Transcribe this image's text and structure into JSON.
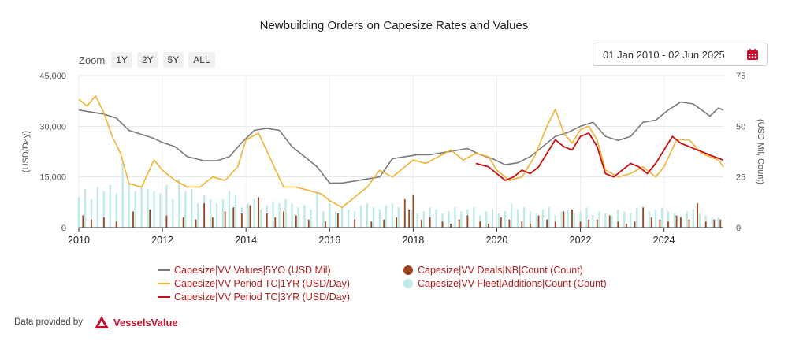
{
  "title": "Newbuilding Orders on Capesize Rates and Values",
  "zoom": {
    "label": "Zoom",
    "buttons": [
      "1Y",
      "2Y",
      "5Y",
      "ALL"
    ]
  },
  "date_range": "01 Jan 2010 - 02 Jun 2025",
  "footer": {
    "text": "Data provided by",
    "brand": "VesselsValue"
  },
  "colors": {
    "values": "#7a7a7a",
    "tc1": "#f2b233",
    "tc3": "#c80f0f",
    "deals": "#a0461e",
    "fleet": "#bfeaea",
    "legend_text": "#b02020",
    "calendar": "#c8102e"
  },
  "chart_data": {
    "type": "line",
    "title": "Newbuilding Orders on Capesize Rates and Values",
    "ylabel_left": "(USD/Day)",
    "ylabel_right": "(USD Mil, Count)",
    "xlim": [
      2010.0,
      2025.42
    ],
    "ylim_left": [
      0,
      45000
    ],
    "ylim_right": [
      0,
      75
    ],
    "x_ticks": [
      2010,
      2012,
      2014,
      2016,
      2018,
      2020,
      2022,
      2024
    ],
    "y_ticks_left": [
      {
        "v": 0,
        "label": "0"
      },
      {
        "v": 15000,
        "label": "15,000"
      },
      {
        "v": 30000,
        "label": "30,000"
      },
      {
        "v": 45000,
        "label": "45,000"
      }
    ],
    "y_ticks_right": [
      0,
      25,
      50,
      75
    ],
    "grid": true,
    "legend_position": "bottom",
    "series": [
      {
        "name": "Capesize|VV Values|5YO (USD Mil)",
        "axis": "right",
        "kind": "line",
        "x": [
          2010.0,
          2010.3,
          2010.6,
          2010.9,
          2011.2,
          2011.5,
          2011.8,
          2012.0,
          2012.3,
          2012.6,
          2013.0,
          2013.3,
          2013.6,
          2013.9,
          2014.2,
          2014.5,
          2014.8,
          2015.1,
          2015.4,
          2015.7,
          2016.0,
          2016.3,
          2016.6,
          2016.9,
          2017.2,
          2017.5,
          2017.8,
          2018.1,
          2018.4,
          2018.7,
          2019.0,
          2019.3,
          2019.6,
          2019.9,
          2020.2,
          2020.5,
          2020.8,
          2021.1,
          2021.4,
          2021.7,
          2022.0,
          2022.3,
          2022.6,
          2022.9,
          2023.2,
          2023.5,
          2023.8,
          2024.1,
          2024.4,
          2024.7,
          2024.9,
          2025.1,
          2025.3,
          2025.42
        ],
        "y": [
          58,
          57,
          56,
          54,
          48,
          46,
          44,
          42,
          40,
          35,
          33,
          33,
          35,
          42,
          48,
          49,
          48,
          40,
          35,
          30,
          22,
          22,
          23,
          24,
          25,
          34,
          35,
          36,
          36,
          37,
          38,
          39,
          36,
          34,
          31,
          32,
          35,
          40,
          45,
          47,
          50,
          52,
          45,
          43,
          45,
          52,
          53,
          58,
          62,
          61,
          58,
          55,
          59,
          58
        ]
      },
      {
        "name": "Capesize|VV Period TC|1YR (USD/Day)",
        "axis": "left",
        "kind": "line",
        "x": [
          2010.0,
          2010.2,
          2010.4,
          2010.6,
          2010.8,
          2011.0,
          2011.2,
          2011.5,
          2011.8,
          2012.0,
          2012.3,
          2012.6,
          2012.9,
          2013.2,
          2013.5,
          2013.8,
          2014.0,
          2014.3,
          2014.6,
          2014.9,
          2015.2,
          2015.5,
          2015.8,
          2016.0,
          2016.3,
          2016.6,
          2016.9,
          2017.2,
          2017.5,
          2017.8,
          2018.0,
          2018.3,
          2018.6,
          2018.9,
          2019.2,
          2019.5,
          2019.8,
          2020.0,
          2020.3,
          2020.6,
          2020.9,
          2021.2,
          2021.4,
          2021.6,
          2021.8,
          2022.0,
          2022.2,
          2022.4,
          2022.6,
          2022.9,
          2023.2,
          2023.5,
          2023.8,
          2024.0,
          2024.3,
          2024.6,
          2024.9,
          2025.1,
          2025.3,
          2025.42
        ],
        "y": [
          38000,
          36000,
          39000,
          34000,
          27000,
          22000,
          13000,
          12000,
          20000,
          17000,
          14000,
          12000,
          12000,
          15000,
          14000,
          18000,
          26000,
          28000,
          20000,
          12000,
          12000,
          11000,
          10000,
          8000,
          6000,
          9000,
          12000,
          17000,
          15000,
          18000,
          20000,
          19000,
          21000,
          23000,
          20000,
          22000,
          21000,
          17000,
          14000,
          15000,
          21000,
          30000,
          35000,
          28000,
          25000,
          29000,
          30000,
          26000,
          17000,
          15000,
          16000,
          18000,
          15000,
          18000,
          26000,
          26000,
          22000,
          21000,
          20000,
          18000
        ]
      },
      {
        "name": "Capesize|VV Period TC|3YR (USD/Day)",
        "axis": "left",
        "kind": "line",
        "x": [
          2019.5,
          2019.8,
          2020.0,
          2020.2,
          2020.4,
          2020.6,
          2020.8,
          2021.0,
          2021.2,
          2021.4,
          2021.6,
          2021.8,
          2022.0,
          2022.2,
          2022.4,
          2022.6,
          2022.8,
          2023.0,
          2023.2,
          2023.4,
          2023.6,
          2023.8,
          2024.0,
          2024.2,
          2024.4,
          2024.6,
          2024.8,
          2025.0,
          2025.2,
          2025.42
        ],
        "y": [
          19000,
          18000,
          16000,
          14000,
          15000,
          17000,
          16000,
          18000,
          22000,
          26000,
          24000,
          23000,
          27000,
          28000,
          24000,
          16000,
          15000,
          17000,
          19000,
          18000,
          16000,
          19000,
          23000,
          27000,
          25000,
          24000,
          23000,
          22000,
          21000,
          20000
        ]
      },
      {
        "name": "Capesize|VV Deals|NB|Count (Count)",
        "axis": "right",
        "kind": "bar",
        "x": [
          2010.1,
          2010.3,
          2010.6,
          2010.9,
          2011.3,
          2011.7,
          2012.1,
          2012.5,
          2012.8,
          2013.0,
          2013.2,
          2013.5,
          2013.7,
          2013.9,
          2014.1,
          2014.3,
          2014.5,
          2014.7,
          2014.9,
          2015.2,
          2015.5,
          2015.9,
          2016.2,
          2016.6,
          2017.0,
          2017.3,
          2017.6,
          2017.8,
          2017.9,
          2018.0,
          2018.2,
          2018.4,
          2018.7,
          2018.9,
          2019.1,
          2019.3,
          2019.6,
          2019.8,
          2020.1,
          2020.3,
          2020.6,
          2020.8,
          2021.0,
          2021.2,
          2021.4,
          2021.6,
          2021.8,
          2022.0,
          2022.2,
          2022.4,
          2022.7,
          2022.9,
          2023.1,
          2023.3,
          2023.5,
          2023.7,
          2023.9,
          2024.1,
          2024.3,
          2024.4,
          2024.6,
          2024.8,
          2025.0,
          2025.2,
          2025.35
        ],
        "y": [
          6,
          4,
          5,
          3,
          8,
          9,
          6,
          5,
          4,
          12,
          5,
          8,
          10,
          7,
          11,
          15,
          7,
          5,
          8,
          6,
          4,
          3,
          7,
          4,
          3,
          4,
          5,
          14,
          9,
          16,
          4,
          5,
          3,
          2,
          4,
          6,
          3,
          2,
          5,
          4,
          3,
          2,
          6,
          4,
          3,
          8,
          9,
          3,
          4,
          4,
          6,
          3,
          2,
          3,
          10,
          5,
          4,
          3,
          6,
          5,
          4,
          12,
          3,
          4,
          4
        ]
      },
      {
        "name": "Capesize|VV Fleet|Additions|Count (Count)",
        "axis": "right",
        "kind": "bar",
        "x": [
          2010.0,
          2010.15,
          2010.3,
          2010.45,
          2010.6,
          2010.75,
          2010.9,
          2011.05,
          2011.2,
          2011.35,
          2011.5,
          2011.65,
          2011.8,
          2011.95,
          2012.1,
          2012.25,
          2012.4,
          2012.55,
          2012.7,
          2012.85,
          2013.0,
          2013.15,
          2013.3,
          2013.45,
          2013.6,
          2013.75,
          2013.9,
          2014.05,
          2014.2,
          2014.35,
          2014.5,
          2014.65,
          2014.8,
          2014.95,
          2015.1,
          2015.25,
          2015.4,
          2015.55,
          2015.7,
          2015.85,
          2016.0,
          2016.15,
          2016.3,
          2016.45,
          2016.6,
          2016.75,
          2016.9,
          2017.05,
          2017.2,
          2017.35,
          2017.5,
          2017.65,
          2017.8,
          2017.95,
          2018.1,
          2018.25,
          2018.4,
          2018.55,
          2018.7,
          2018.85,
          2019.0,
          2019.15,
          2019.3,
          2019.45,
          2019.6,
          2019.75,
          2019.9,
          2020.05,
          2020.2,
          2020.35,
          2020.5,
          2020.65,
          2020.8,
          2020.95,
          2021.1,
          2021.25,
          2021.4,
          2021.55,
          2021.7,
          2021.85,
          2022.0,
          2022.15,
          2022.3,
          2022.45,
          2022.6,
          2022.75,
          2022.9,
          2023.05,
          2023.2,
          2023.35,
          2023.5,
          2023.65,
          2023.8,
          2023.95,
          2024.1,
          2024.25,
          2024.4,
          2024.55,
          2024.7,
          2024.85,
          2025.0,
          2025.15,
          2025.3
        ],
        "y": [
          15,
          19,
          14,
          20,
          18,
          21,
          17,
          32,
          22,
          18,
          20,
          19,
          18,
          17,
          21,
          14,
          24,
          18,
          19,
          12,
          16,
          14,
          12,
          14,
          18,
          16,
          10,
          12,
          14,
          9,
          11,
          13,
          12,
          14,
          12,
          10,
          11,
          9,
          17,
          8,
          12,
          8,
          10,
          9,
          8,
          11,
          12,
          10,
          9,
          11,
          12,
          10,
          8,
          9,
          7,
          8,
          10,
          9,
          7,
          8,
          10,
          8,
          9,
          10,
          6,
          8,
          9,
          7,
          8,
          12,
          9,
          10,
          8,
          7,
          9,
          10,
          6,
          8,
          9,
          7,
          8,
          10,
          6,
          8,
          7,
          6,
          9,
          8,
          7,
          10,
          6,
          8,
          9,
          10,
          8,
          7,
          6,
          8,
          9,
          7,
          6,
          5,
          5
        ]
      }
    ]
  }
}
